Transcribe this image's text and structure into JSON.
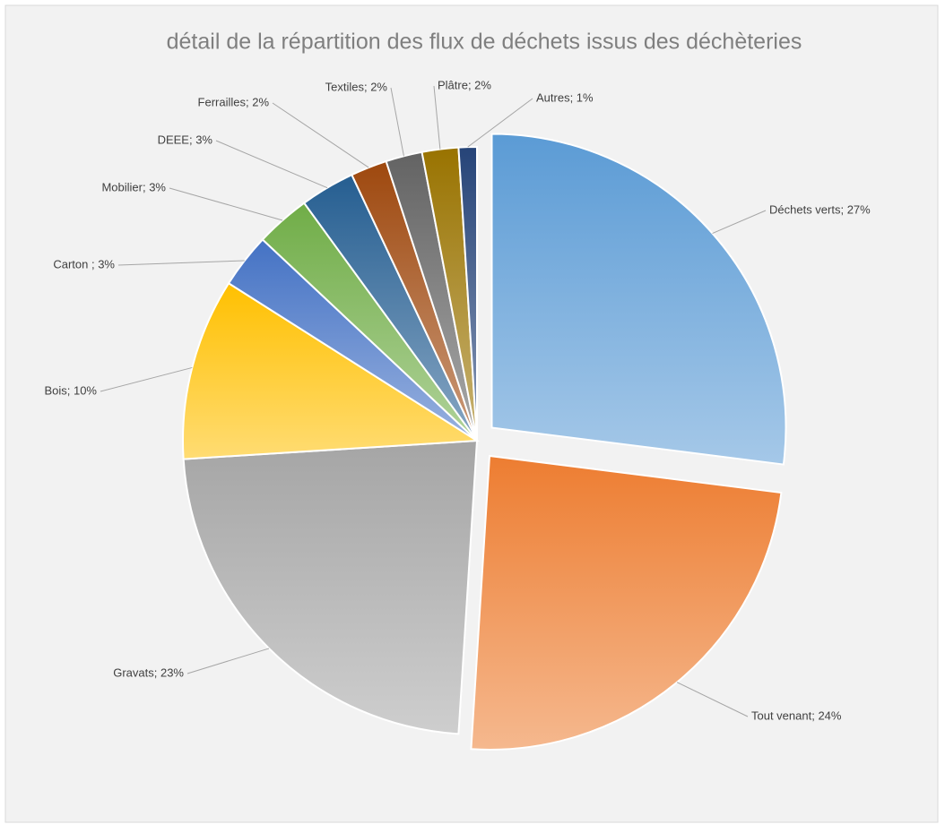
{
  "chart_data": {
    "type": "pie",
    "title": "détail de la répartition des flux de déchets issus des déchèteries",
    "labels": [
      "Déchets verts; 27%",
      "Tout venant; 24%",
      "Gravats; 23%",
      "Bois; 10%",
      "Carton ; 3%",
      "Mobilier; 3%",
      "DEEE; 3%",
      "Ferrailles; 2%",
      "Textiles; 2%",
      "Plâtre; 2%",
      "Autres; 1%"
    ],
    "values": [
      27,
      24,
      23,
      10,
      3,
      3,
      3,
      2,
      2,
      2,
      1
    ],
    "colors": [
      "#5b9bd5",
      "#ed7d31",
      "#a5a5a5",
      "#ffc000",
      "#4472c4",
      "#70ad47",
      "#255e91",
      "#9e480e",
      "#636363",
      "#997300",
      "#264478"
    ]
  }
}
